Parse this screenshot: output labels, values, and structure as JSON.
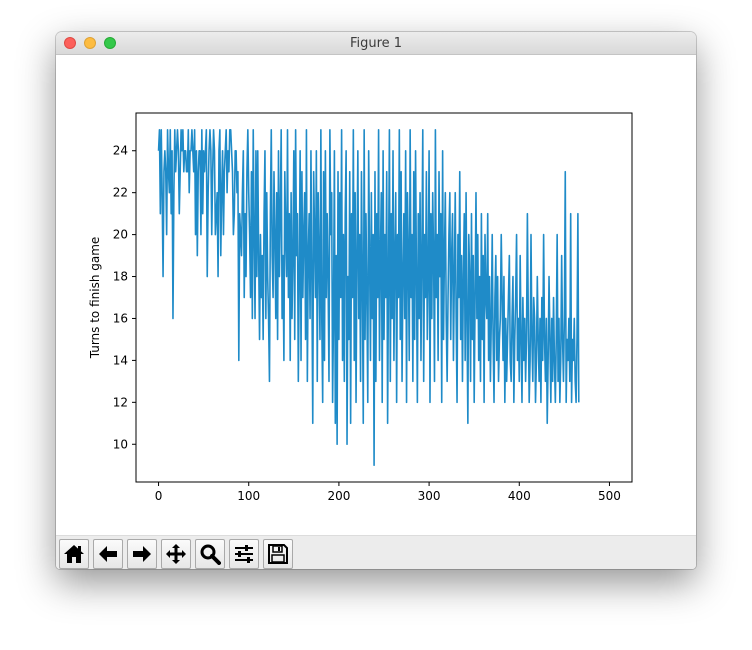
{
  "window": {
    "title": "Figure 1"
  },
  "toolbar": {
    "buttons": [
      {
        "name": "home",
        "icon": "home-icon"
      },
      {
        "name": "back",
        "icon": "arrow-left-icon"
      },
      {
        "name": "forward",
        "icon": "arrow-right-icon"
      },
      {
        "name": "pan",
        "icon": "move-icon"
      },
      {
        "name": "zoom",
        "icon": "magnifier-icon"
      },
      {
        "name": "configure",
        "icon": "sliders-icon"
      },
      {
        "name": "save",
        "icon": "floppy-disk-icon"
      }
    ]
  },
  "chart_data": {
    "type": "line",
    "title": "",
    "xlabel": "",
    "ylabel": "Turns to finish game",
    "xlim": [
      -25,
      525
    ],
    "ylim": [
      8.2,
      25.8
    ],
    "xticks": [
      0,
      100,
      200,
      300,
      400,
      500
    ],
    "yticks": [
      10,
      12,
      14,
      16,
      18,
      20,
      22,
      24
    ],
    "grid": false,
    "series": [
      {
        "name": "",
        "color": "#1f8bc8",
        "x_start": 0,
        "x_step": 1,
        "values": [
          24,
          25,
          21,
          25,
          22,
          18,
          23,
          24,
          23,
          20,
          25,
          23,
          22,
          25,
          21,
          24,
          16,
          22,
          25,
          23,
          24,
          25,
          24,
          21,
          23,
          25,
          24,
          25,
          23,
          24,
          24,
          23,
          23,
          25,
          22,
          24,
          24,
          25,
          24,
          23,
          25,
          20,
          24,
          19,
          23,
          24,
          24,
          20,
          25,
          21,
          24,
          23,
          24,
          25,
          18,
          22,
          24,
          25,
          24,
          20,
          23,
          25,
          24,
          20,
          21,
          22,
          18,
          24,
          25,
          19,
          22,
          24,
          20,
          23,
          24,
          25,
          22,
          24,
          23,
          25,
          25,
          24,
          23,
          20,
          21,
          24,
          24,
          22,
          23,
          14,
          21,
          20,
          19,
          22,
          24,
          17,
          21,
          18,
          23,
          25,
          22,
          20,
          17,
          23,
          16,
          25,
          20,
          16,
          24,
          18,
          24,
          19,
          15,
          20,
          17,
          19,
          15,
          21,
          24,
          16,
          22,
          18,
          16,
          13,
          21,
          25,
          19,
          17,
          23,
          20,
          16,
          22,
          15,
          24,
          18,
          21,
          25,
          16,
          19,
          14,
          23,
          20,
          18,
          25,
          17,
          21,
          14,
          22,
          16,
          19,
          24,
          15,
          25,
          19,
          21,
          13,
          18,
          24,
          14,
          23,
          17,
          20,
          22,
          15,
          25,
          13,
          19,
          21,
          16,
          24,
          18,
          11,
          23,
          20,
          17,
          24,
          13,
          22,
          19,
          15,
          25,
          16,
          12,
          23,
          14,
          24,
          17,
          21,
          18,
          13,
          25,
          20,
          22,
          12,
          16,
          24,
          11,
          19,
          10,
          23,
          15,
          22,
          17,
          25,
          14,
          20,
          13,
          21,
          24,
          10,
          18,
          15,
          23,
          11,
          21,
          17,
          25,
          14,
          22,
          12,
          19,
          24,
          16,
          20,
          13,
          23,
          18,
          11,
          25,
          15,
          21,
          17,
          12,
          24,
          19,
          14,
          22,
          16,
          20,
          9,
          23,
          13,
          21,
          17,
          25,
          14,
          19,
          22,
          12,
          24,
          15,
          20,
          17,
          23,
          11,
          18,
          25,
          13,
          21,
          16,
          24,
          14,
          19,
          22,
          12,
          20,
          17,
          25,
          15,
          23,
          13,
          18,
          21,
          16,
          24,
          12,
          22,
          19,
          14,
          25,
          17,
          20,
          13,
          23,
          15,
          24,
          18,
          12,
          21,
          16,
          22,
          14,
          19,
          25,
          13,
          20,
          17,
          23,
          15,
          18,
          24,
          12,
          21,
          16,
          22,
          19,
          13,
          25,
          17,
          20,
          14,
          23,
          18,
          21,
          12,
          24,
          15,
          19,
          22,
          16,
          13,
          17,
          20,
          22,
          15,
          19,
          21,
          14,
          18,
          22,
          16,
          12,
          20,
          17,
          23,
          15,
          19,
          13,
          18,
          21,
          14,
          22,
          16,
          11,
          20,
          18,
          13,
          21,
          15,
          19,
          12,
          17,
          22,
          16,
          20,
          14,
          18,
          13,
          21,
          15,
          19,
          12,
          20,
          17,
          16,
          21,
          14,
          18,
          13,
          16,
          20,
          15,
          12,
          17,
          19,
          14,
          18,
          13,
          15,
          16,
          20,
          17,
          14,
          18,
          12,
          16,
          13,
          15,
          17,
          19,
          14,
          13,
          16,
          18,
          12,
          15,
          17,
          20,
          14,
          16,
          13,
          19,
          15,
          12,
          17,
          14,
          16,
          13,
          15,
          21,
          16,
          12,
          14,
          20,
          15,
          13,
          17,
          16,
          12,
          14,
          18,
          15,
          13,
          16,
          12,
          17,
          14,
          20,
          15,
          13,
          16,
          11,
          14,
          18,
          15,
          12,
          16,
          13,
          17,
          14,
          12,
          15,
          20,
          13,
          16,
          12,
          14,
          19,
          15,
          13,
          16,
          23,
          12,
          15,
          14,
          16,
          13,
          21,
          12,
          15,
          14,
          16,
          13,
          12,
          15,
          21,
          12
        ]
      }
    ]
  }
}
